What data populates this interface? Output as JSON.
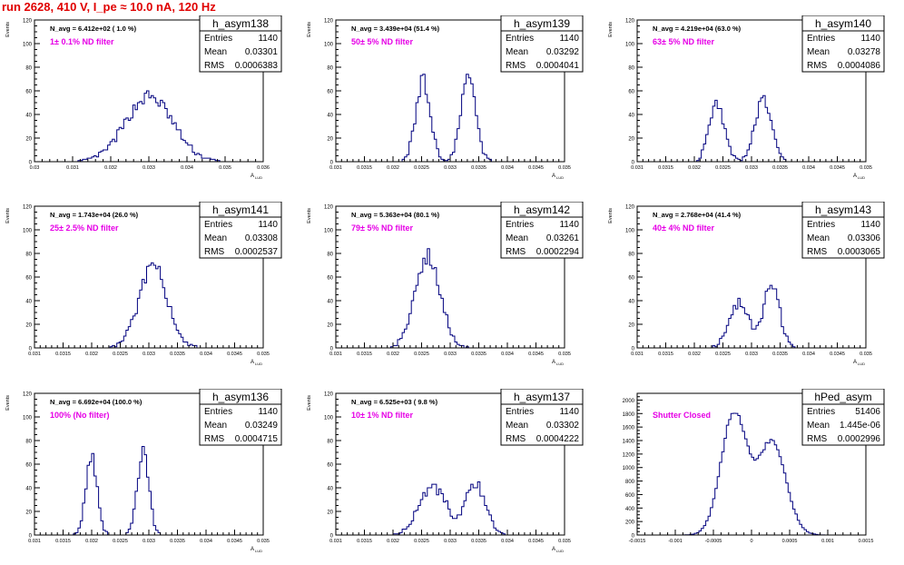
{
  "run_title": "run 2628,   410 V, I_pe ≈ 10.0 nA, 120 Hz",
  "colors": {
    "hist_line": "#00007f",
    "annotation": "#e600e6",
    "run_title": "#e00000",
    "frame": "#000000"
  },
  "chart_data": [
    {
      "type": "bar",
      "name": "h_asym138",
      "ylabel": "Events",
      "xlabel": "A",
      "xlabel_sub": "LUD",
      "nav": "N_avg = 6.412e+02 ( 1.0 %)",
      "filter": "1± 0.1% ND filter",
      "stats": {
        "entries": "1140",
        "mean": "0.03301",
        "rms": "0.0006383"
      },
      "xlim": [
        0.03,
        0.036
      ],
      "ylim": [
        0,
        120
      ],
      "xticks": [
        "0.03",
        "0.031",
        "0.032",
        "0.033",
        "0.034",
        "0.035",
        "0.036"
      ],
      "yticks": [
        "0",
        "20",
        "40",
        "60",
        "80",
        "100",
        "120"
      ],
      "peaks": [
        {
          "mu": 0.03301,
          "sigma": 0.00062,
          "amp": 55
        }
      ]
    },
    {
      "type": "bar",
      "name": "h_asym139",
      "ylabel": "Events",
      "xlabel": "A",
      "xlabel_sub": "LUD",
      "nav": "N_avg = 3.439e+04 (51.4 %)",
      "filter": "50± 5% ND filter",
      "stats": {
        "entries": "1140",
        "mean": "0.03292",
        "rms": "0.0004041"
      },
      "xlim": [
        0.031,
        0.035
      ],
      "ylim": [
        0,
        120
      ],
      "xticks": [
        "0.031",
        "0.0315",
        "0.032",
        "0.0325",
        "0.033",
        "0.0335",
        "0.034",
        "0.0345",
        "0.035"
      ],
      "yticks": [
        "0",
        "20",
        "40",
        "60",
        "80",
        "100",
        "120"
      ],
      "peaks": [
        {
          "mu": 0.03253,
          "sigma": 0.00013,
          "amp": 68
        },
        {
          "mu": 0.03332,
          "sigma": 0.00013,
          "amp": 70
        }
      ]
    },
    {
      "type": "bar",
      "name": "h_asym140",
      "ylabel": "Events",
      "xlabel": "A",
      "xlabel_sub": "LUD",
      "nav": "N_avg = 4.219e+04 (63.0 %)",
      "filter": "63± 5% ND filter",
      "stats": {
        "entries": "1140",
        "mean": "0.03278",
        "rms": "0.0004086"
      },
      "xlim": [
        0.031,
        0.035
      ],
      "ylim": [
        0,
        120
      ],
      "xticks": [
        "0.031",
        "0.0315",
        "0.032",
        "0.0325",
        "0.033",
        "0.0335",
        "0.034",
        "0.0345",
        "0.035"
      ],
      "yticks": [
        "0",
        "20",
        "40",
        "60",
        "80",
        "100",
        "120"
      ],
      "peaks": [
        {
          "mu": 0.0324,
          "sigma": 0.00014,
          "amp": 48
        },
        {
          "mu": 0.0332,
          "sigma": 0.00014,
          "amp": 55
        }
      ]
    },
    {
      "type": "bar",
      "name": "h_asym141",
      "ylabel": "Events",
      "xlabel": "A",
      "xlabel_sub": "LUD",
      "nav": "N_avg = 1.743e+04 (26.0 %)",
      "filter": "25± 2.5% ND filter",
      "stats": {
        "entries": "1140",
        "mean": "0.03308",
        "rms": "0.0002537"
      },
      "xlim": [
        0.031,
        0.035
      ],
      "ylim": [
        0,
        120
      ],
      "xticks": [
        "0.031",
        "0.0315",
        "0.032",
        "0.0325",
        "0.033",
        "0.0335",
        "0.034",
        "0.0345",
        "0.035"
      ],
      "yticks": [
        "0",
        "20",
        "40",
        "60",
        "80",
        "100",
        "120"
      ],
      "peaks": [
        {
          "mu": 0.03308,
          "sigma": 0.00025,
          "amp": 68
        }
      ]
    },
    {
      "type": "bar",
      "name": "h_asym142",
      "ylabel": "Events",
      "xlabel": "A",
      "xlabel_sub": "LUD",
      "nav": "N_avg = 5.363e+04 (80.1 %)",
      "filter": "79± 5% ND filter",
      "stats": {
        "entries": "1140",
        "mean": "0.03261",
        "rms": "0.0002294"
      },
      "xlim": [
        0.031,
        0.035
      ],
      "ylim": [
        0,
        120
      ],
      "xticks": [
        "0.031",
        "0.0315",
        "0.032",
        "0.0325",
        "0.033",
        "0.0335",
        "0.034",
        "0.0345",
        "0.035"
      ],
      "yticks": [
        "0",
        "20",
        "40",
        "60",
        "80",
        "100",
        "120"
      ],
      "peaks": [
        {
          "mu": 0.03261,
          "sigma": 0.00022,
          "amp": 78
        }
      ]
    },
    {
      "type": "bar",
      "name": "h_asym143",
      "ylabel": "Events",
      "xlabel": "A",
      "xlabel_sub": "LUD",
      "nav": "N_avg = 2.768e+04 (41.4 %)",
      "filter": "40± 4% ND filter",
      "stats": {
        "entries": "1140",
        "mean": "0.03306",
        "rms": "0.0003065"
      },
      "xlim": [
        0.031,
        0.035
      ],
      "ylim": [
        0,
        120
      ],
      "xticks": [
        "0.031",
        "0.0315",
        "0.032",
        "0.0325",
        "0.033",
        "0.0335",
        "0.034",
        "0.0345",
        "0.035"
      ],
      "yticks": [
        "0",
        "20",
        "40",
        "60",
        "80",
        "100",
        "120"
      ],
      "peaks": [
        {
          "mu": 0.03278,
          "sigma": 0.00017,
          "amp": 38
        },
        {
          "mu": 0.03335,
          "sigma": 0.00014,
          "amp": 52
        }
      ]
    },
    {
      "type": "bar",
      "name": "h_asym136",
      "ylabel": "Events",
      "xlabel": "A",
      "xlabel_sub": "LUD",
      "nav": "N_avg = 6.692e+04 (100.0 %)",
      "filter": "100% (No filter)",
      "stats": {
        "entries": "1140",
        "mean": "0.03249",
        "rms": "0.0004715"
      },
      "xlim": [
        0.031,
        0.035
      ],
      "ylim": [
        0,
        120
      ],
      "xticks": [
        "0.031",
        "0.0315",
        "0.032",
        "0.0325",
        "0.033",
        "0.0335",
        "0.034",
        "0.0345",
        "0.035"
      ],
      "yticks": [
        "0",
        "20",
        "40",
        "60",
        "80",
        "100",
        "120"
      ],
      "peaks": [
        {
          "mu": 0.032,
          "sigma": 0.0001,
          "amp": 65
        },
        {
          "mu": 0.0329,
          "sigma": 0.0001,
          "amp": 70
        }
      ]
    },
    {
      "type": "bar",
      "name": "h_asym137",
      "ylabel": "Events",
      "xlabel": "A",
      "xlabel_sub": "LUD",
      "nav": "N_avg = 6.525e+03 ( 9.8 %)",
      "filter": "10± 1% ND filter",
      "stats": {
        "entries": "1140",
        "mean": "0.03302",
        "rms": "0.0004222"
      },
      "xlim": [
        0.031,
        0.035
      ],
      "ylim": [
        0,
        120
      ],
      "xticks": [
        "0.031",
        "0.0315",
        "0.032",
        "0.0325",
        "0.033",
        "0.0335",
        "0.034",
        "0.0345",
        "0.035"
      ],
      "yticks": [
        "0",
        "20",
        "40",
        "60",
        "80",
        "100",
        "120"
      ],
      "peaks": [
        {
          "mu": 0.0327,
          "sigma": 0.00024,
          "amp": 40
        },
        {
          "mu": 0.03345,
          "sigma": 0.00018,
          "amp": 42
        }
      ]
    },
    {
      "type": "bar",
      "name": "hPed_asym",
      "ylabel": "",
      "xlabel": "",
      "xlabel_sub": "",
      "nav": "",
      "filter": "Shutter Closed",
      "stats": {
        "entries": "51406",
        "mean": "1.445e-06",
        "rms": "0.0002996"
      },
      "xlim": [
        -0.0015,
        0.0015
      ],
      "ylim": [
        0,
        2100
      ],
      "xticks": [
        "-0.0015",
        "-0.001",
        "-0.0005",
        "0",
        "0.0005",
        "0.001",
        "0.0015"
      ],
      "yticks": [
        "0",
        "200",
        "400",
        "600",
        "800",
        "1000",
        "1200",
        "1400",
        "1600",
        "1800",
        "2000"
      ],
      "peaks": [
        {
          "mu": -0.00023,
          "sigma": 0.00017,
          "amp": 1800
        },
        {
          "mu": 0.00027,
          "sigma": 0.00018,
          "amp": 1380
        }
      ]
    }
  ]
}
